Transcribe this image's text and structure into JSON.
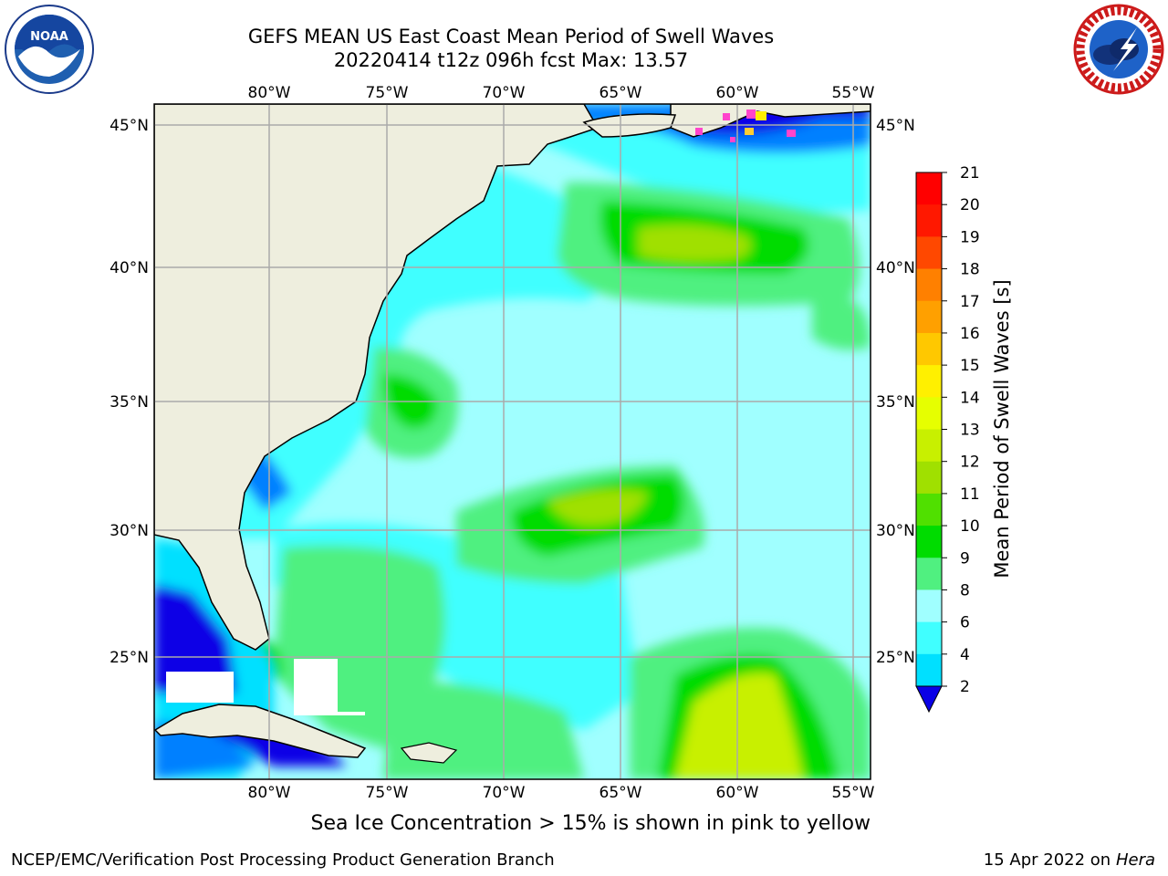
{
  "header": {
    "title_line1": "GEFS MEAN US East Coast Mean Period of Swell Waves",
    "title_line2": "20220414 t12z 096h fcst   Max: 13.57"
  },
  "logos": {
    "left": {
      "name": "noaa-logo",
      "icon": "noaa-seagull-emblem",
      "text": "NOAA"
    },
    "right": {
      "name": "nws-logo",
      "icon": "nws-cloud-lightning-emblem",
      "text": "NATIONAL WEATHER SERVICE"
    }
  },
  "map": {
    "lon_labels": [
      "80°W",
      "75°W",
      "70°W",
      "65°W",
      "60°W",
      "55°W"
    ],
    "lat_labels": [
      "45°N",
      "40°N",
      "35°N",
      "30°N",
      "25°N"
    ],
    "land_color": "#eeeede",
    "ice_colors": [
      "#ff44cc",
      "#ffee00"
    ]
  },
  "colorbar": {
    "title": "Mean Period of Swell Waves [s]",
    "levels": [
      "2",
      "4",
      "6",
      "8",
      "9",
      "10",
      "11",
      "12",
      "13",
      "14",
      "15",
      "16",
      "17",
      "18",
      "19",
      "20",
      "21"
    ],
    "colors": [
      "#0a00e6",
      "#0080ff",
      "#00e0ff",
      "#40ffff",
      "#a0ffff",
      "#50f080",
      "#00dc00",
      "#50e000",
      "#a0e000",
      "#c8f000",
      "#e6ff00",
      "#fff000",
      "#ffc800",
      "#ffa000",
      "#ff8000",
      "#ff4800",
      "#ff1800",
      "#ff0000"
    ]
  },
  "caption": "Sea Ice Concentration > 15% is shown in pink to yellow",
  "footer": {
    "left": "NCEP/EMC/Verification Post Processing Product Generation Branch",
    "date": "15 Apr 2022 on ",
    "machine": "Hera"
  }
}
